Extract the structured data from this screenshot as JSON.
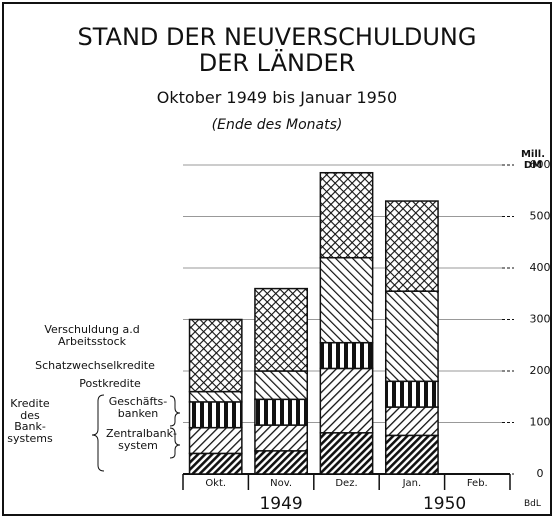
{
  "chart_data": {
    "type": "stacked_bar",
    "title": "STAND DER NEUVERSCHULDUNG\nDER LÄNDER",
    "subtitle": "Oktober 1949 bis Januar 1950",
    "note": "(Ende des Monats)",
    "y_label": "Mill.\nDM",
    "categories": [
      "Okt.",
      "Nov.",
      "Dez.",
      "Jan.",
      "Feb."
    ],
    "years": [
      {
        "label": "1949",
        "from": 0,
        "to": 2
      },
      {
        "label": "1950",
        "from": 3,
        "to": 4
      }
    ],
    "credit": "BdL",
    "group_label": "Kredite\ndes\nBank-\nsystems",
    "series": [
      {
        "name": "Zentralbank-\nsystem",
        "color": "#111",
        "pattern": "dense",
        "values": [
          40,
          45,
          80,
          75,
          null
        ]
      },
      {
        "name": "Geschäfts-\nbanken",
        "color": "#111",
        "pattern": "slash",
        "values": [
          50,
          50,
          125,
          55,
          null
        ]
      },
      {
        "name": "Postkredite",
        "color": "#111",
        "pattern": "vbars",
        "values": [
          50,
          50,
          50,
          50,
          null
        ]
      },
      {
        "name": "Schatzwechselkredite",
        "color": "#111",
        "pattern": "backslash",
        "values": [
          20,
          55,
          165,
          175,
          null
        ]
      },
      {
        "name": "Verschuldung a.d\nArbeitsstock",
        "color": "#111",
        "pattern": "cross",
        "values": [
          140,
          160,
          165,
          175,
          null
        ]
      }
    ],
    "ylim": [
      0,
      600
    ],
    "yticks": [
      0,
      100,
      200,
      300,
      400,
      500,
      600
    ],
    "grid": true
  }
}
